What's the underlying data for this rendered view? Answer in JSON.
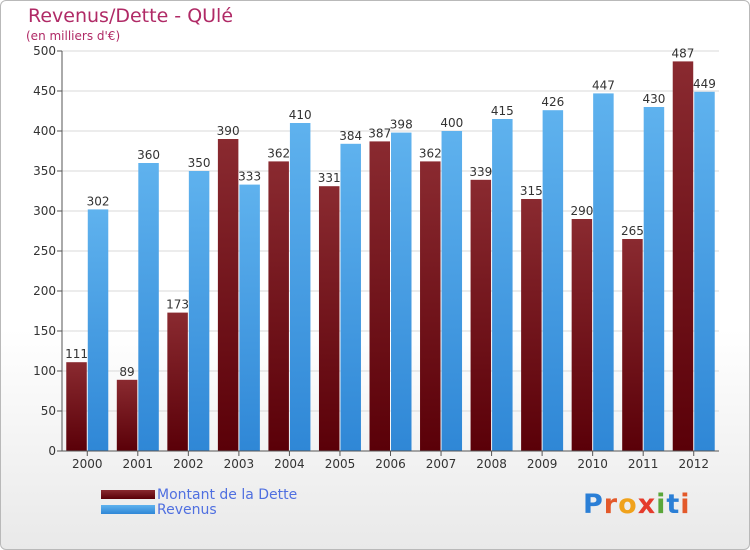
{
  "header": {
    "title": "Revenus/Dette - QUlé",
    "subtitle": "(en milliers d'€)"
  },
  "colors": {
    "dette": "#6e0d16",
    "revenus": "#3f9be4",
    "title": "#b02a66",
    "legend_text": "#4f6fe0"
  },
  "chart_data": {
    "type": "bar",
    "categories": [
      "2000",
      "2001",
      "2002",
      "2003",
      "2004",
      "2005",
      "2006",
      "2007",
      "2008",
      "2009",
      "2010",
      "2011",
      "2012"
    ],
    "series": [
      {
        "name": "Montant de la Dette",
        "values": [
          111,
          89,
          173,
          390,
          362,
          331,
          387,
          362,
          339,
          315,
          290,
          265,
          487
        ]
      },
      {
        "name": "Revenus",
        "values": [
          302,
          360,
          350,
          333,
          410,
          384,
          398,
          400,
          415,
          426,
          447,
          430,
          449
        ]
      }
    ],
    "ylim": [
      0,
      500
    ],
    "yticks": [
      0,
      50,
      100,
      150,
      200,
      250,
      300,
      350,
      400,
      450,
      500
    ],
    "grid": true,
    "legend": "bottom-left"
  },
  "logo": {
    "letters": [
      "P",
      "r",
      "o",
      "x",
      "i",
      "t",
      "i"
    ],
    "colors": [
      "#2b7fd6",
      "#e3592a",
      "#f0a21b",
      "#e53b2c",
      "#5aa63a",
      "#2b7fd6",
      "#e3592a"
    ]
  }
}
